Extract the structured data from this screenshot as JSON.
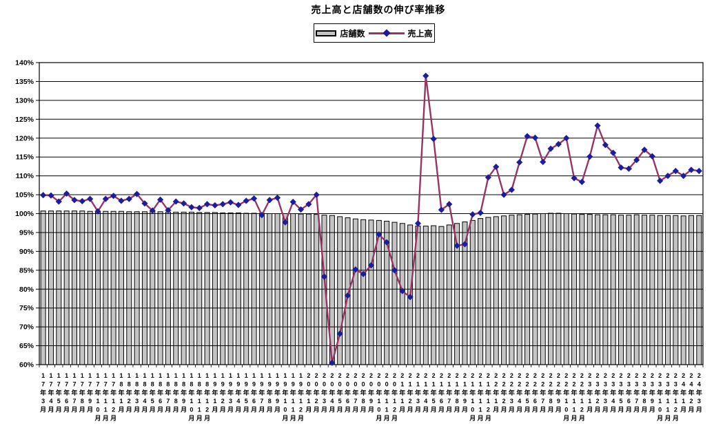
{
  "title": "売上高と店舗数の伸び率推移",
  "legend": {
    "bars_label": "店舗数",
    "line_label": "売上高"
  },
  "colors": {
    "background": "#ffffff",
    "bar_fill": "#c4c4c4",
    "bar_border": "#000000",
    "line": "#993366",
    "marker": "#1c1c9e",
    "grid": "#000000",
    "text": "#000000"
  },
  "y_axis": {
    "min": 60,
    "max": 140,
    "step": 5,
    "tick_labels": [
      "140%",
      "135%",
      "130%",
      "125%",
      "120%",
      "115%",
      "110%",
      "105%",
      "100%",
      "95%",
      "90%",
      "85%",
      "80%",
      "75%",
      "70%",
      "65%",
      "60%"
    ]
  },
  "chart_data": {
    "type": "combo",
    "title": "売上高と店舗数の伸び率推移",
    "xlabel": "",
    "ylabel": "",
    "ylim": [
      60,
      140
    ],
    "y_format": "percent",
    "grid": true,
    "legend_position": "top",
    "categories": [
      "17年3月",
      "17年4月",
      "17年5月",
      "17年6月",
      "17年7月",
      "17年8月",
      "17年9月",
      "17年10月",
      "17年11月",
      "17年12月",
      "18年1月",
      "18年2月",
      "18年3月",
      "18年4月",
      "18年5月",
      "18年6月",
      "18年7月",
      "18年8月",
      "18年9月",
      "18年10月",
      "18年11月",
      "18年12月",
      "19年1月",
      "19年2月",
      "19年3月",
      "19年4月",
      "19年5月",
      "19年6月",
      "19年7月",
      "19年8月",
      "19年9月",
      "19年10月",
      "19年11月",
      "19年12月",
      "20年1月",
      "20年2月",
      "20年3月",
      "20年4月",
      "20年5月",
      "20年6月",
      "20年7月",
      "20年8月",
      "20年9月",
      "20年10月",
      "20年11月",
      "20年12月",
      "21年1月",
      "21年2月",
      "21年3月",
      "21年4月",
      "21年5月",
      "21年6月",
      "21年7月",
      "21年8月",
      "21年9月",
      "21年10月",
      "21年11月",
      "21年12月",
      "22年1月",
      "22年2月",
      "22年3月",
      "22年4月",
      "22年5月",
      "22年6月",
      "22年7月",
      "22年8月",
      "22年9月",
      "22年10月",
      "22年11月",
      "22年12月",
      "23年1月",
      "23年2月",
      "23年3月",
      "23年4月",
      "23年5月",
      "23年6月",
      "23年7月",
      "23年8月",
      "23年9月",
      "23年10月",
      "23年11月",
      "23年12月",
      "24年1月",
      "24年2月",
      "24年3月"
    ],
    "series": [
      {
        "name": "店舗数",
        "type": "bar",
        "values": [
          100.7,
          100.7,
          100.7,
          100.7,
          100.7,
          100.7,
          100.6,
          100.6,
          100.6,
          100.6,
          100.6,
          100.5,
          100.5,
          100.5,
          100.5,
          100.5,
          100.4,
          100.4,
          100.4,
          100.4,
          100.3,
          100.3,
          100.3,
          100.2,
          100.2,
          100.2,
          100.1,
          100.1,
          100.1,
          100.0,
          100.0,
          100.0,
          100.0,
          99.9,
          99.9,
          99.8,
          99.6,
          99.5,
          99.2,
          98.9,
          98.6,
          98.4,
          98.3,
          98.2,
          98.0,
          97.7,
          97.4,
          97.0,
          96.7,
          96.7,
          96.8,
          96.6,
          97.0,
          97.4,
          97.8,
          98.2,
          98.7,
          99.0,
          99.2,
          99.4,
          99.6,
          99.7,
          99.8,
          99.9,
          100.0,
          100.1,
          100.1,
          100.0,
          99.9,
          99.8,
          99.8,
          99.7,
          99.7,
          99.7,
          99.6,
          99.6,
          99.7,
          99.6,
          99.6,
          99.5,
          99.5,
          99.5,
          99.4,
          99.5,
          99.5
        ]
      },
      {
        "name": "売上高",
        "type": "line",
        "values": [
          104.9,
          104.8,
          103.2,
          105.3,
          103.6,
          103.3,
          103.9,
          100.6,
          103.9,
          104.7,
          103.4,
          103.9,
          105.2,
          102.7,
          100.8,
          103.7,
          100.9,
          103.2,
          102.7,
          101.7,
          101.5,
          102.5,
          102.2,
          102.5,
          103.0,
          102.3,
          103.4,
          104.0,
          99.6,
          103.6,
          104.2,
          97.7,
          103.1,
          101.1,
          102.5,
          105.0,
          83.3,
          60.5,
          68.2,
          78.3,
          85.2,
          84.0,
          86.3,
          94.5,
          92.4,
          85.0,
          79.5,
          77.9,
          97.4,
          136.5,
          119.8,
          101.0,
          102.5,
          91.5,
          91.9,
          99.8,
          100.2,
          109.6,
          112.4,
          105.0,
          106.3,
          113.6,
          120.5,
          120.1,
          113.7,
          117.2,
          118.4,
          120.0,
          109.4,
          108.4,
          115.1,
          123.3,
          118.2,
          116.1,
          112.2,
          111.9,
          114.2,
          116.9,
          115.2,
          108.7,
          110.0,
          111.3,
          110.0,
          111.6,
          111.3
        ]
      }
    ]
  }
}
